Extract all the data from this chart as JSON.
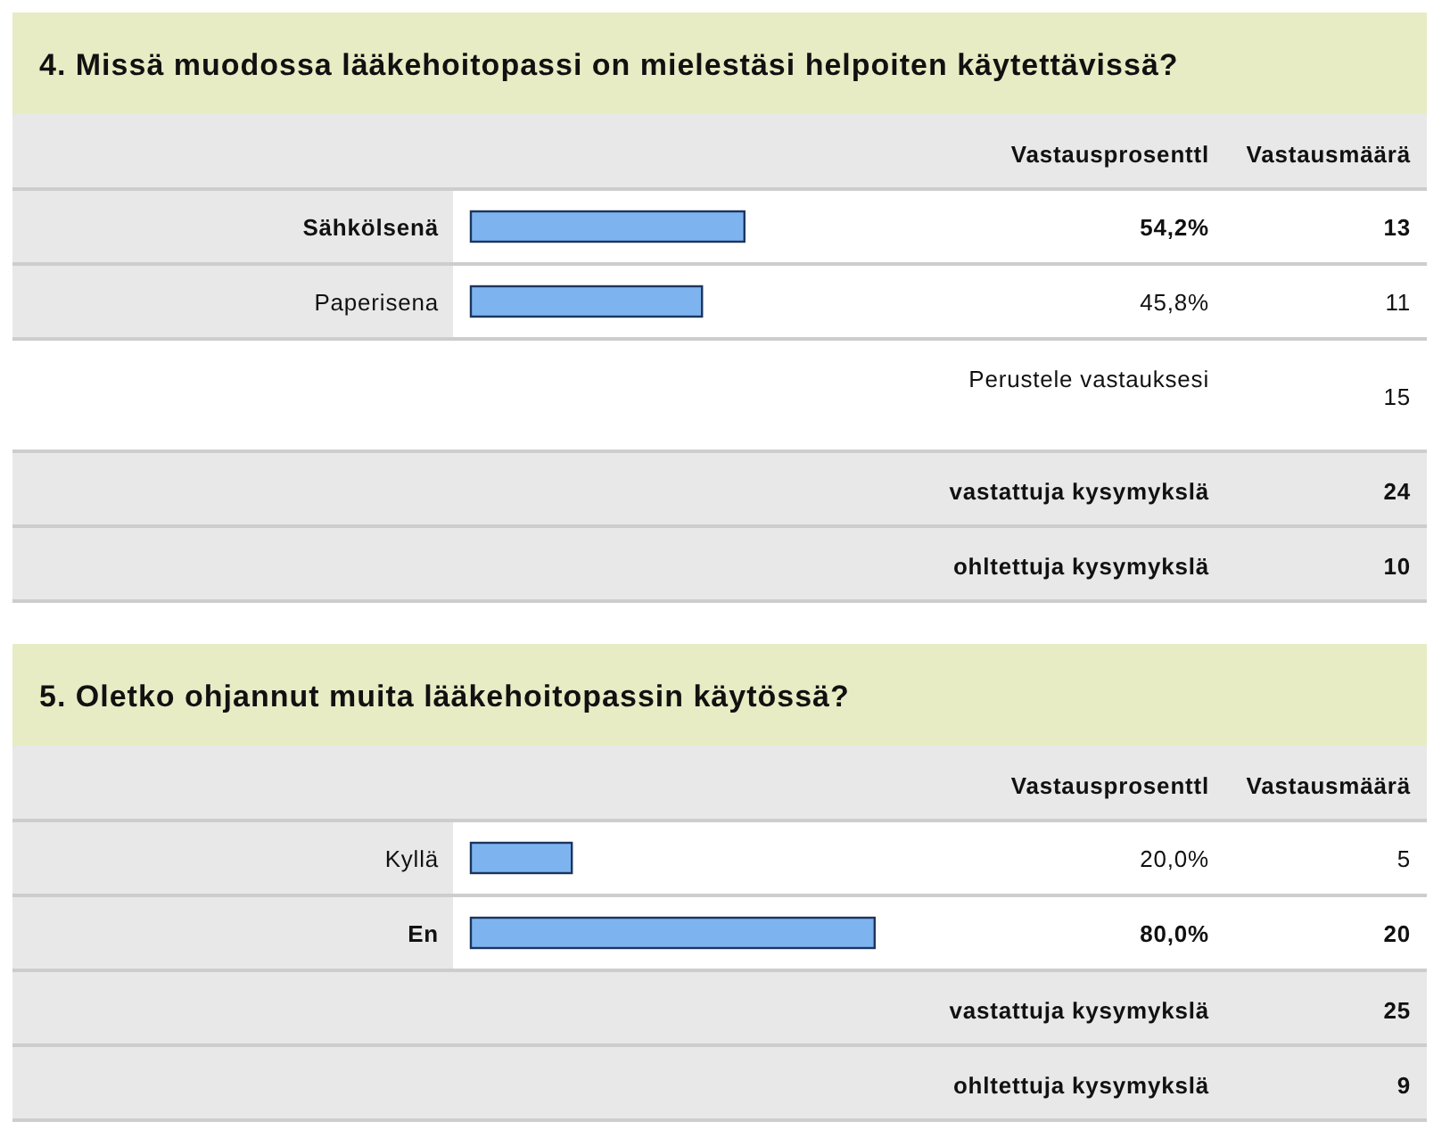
{
  "chart_data": [
    {
      "type": "bar",
      "orientation": "horizontal",
      "title": "4. Missä muodossa lääkehoitopassi on mielestäsi helpoiten käytettävissä?",
      "categories": [
        "Sähkölsenä",
        "Paperisena"
      ],
      "values": [
        54.2,
        45.8
      ],
      "value_labels": [
        "54,2%",
        "45,8%"
      ],
      "color": "#7db4f0",
      "annotations": [
        "Vastausprosenttl",
        "Vastausmäärä",
        "13",
        "11",
        "Perustele vastauksesi",
        "15",
        "vastattuja kysymykslä",
        "24",
        "ohltettuja kysymykslä",
        "10"
      ]
    },
    {
      "type": "bar",
      "orientation": "horizontal",
      "title": "5. Oletko ohjannut muita lääkehoitopassin käytössä?",
      "categories": [
        "Kyllä",
        "En"
      ],
      "values": [
        20.0,
        80.0
      ],
      "value_labels": [
        "20,0%",
        "80,0%"
      ],
      "color": "#7db4f0",
      "annotations": [
        "Vastausprosenttl",
        "Vastausmäärä",
        "5",
        "20",
        "vastattuja kysymykslä",
        "25",
        "ohltettuja kysymykslä",
        "9"
      ]
    }
  ]
}
